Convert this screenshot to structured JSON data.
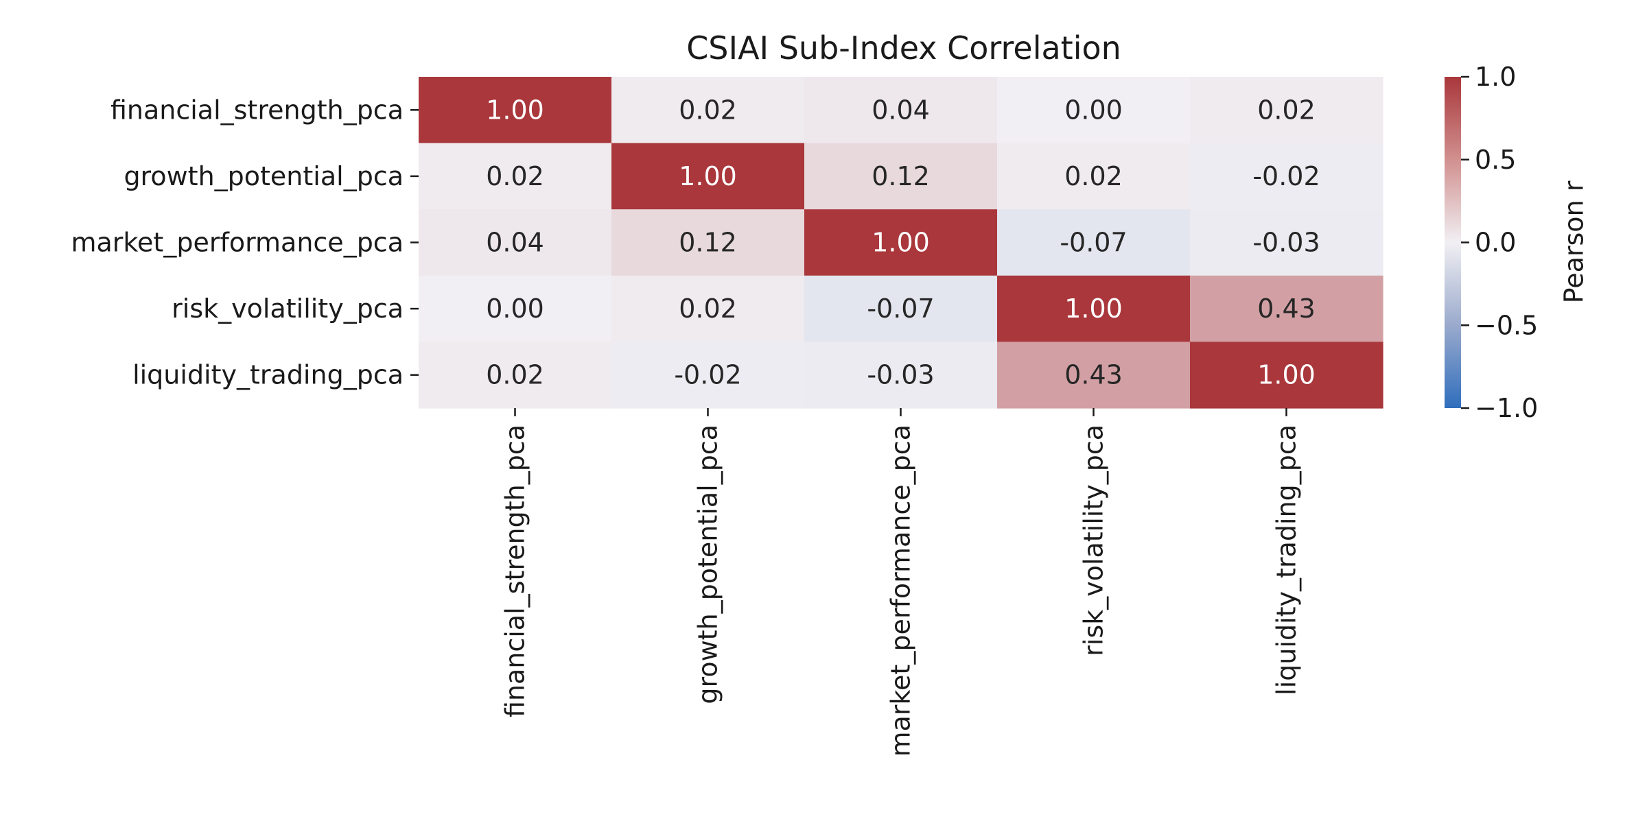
{
  "chart_data": {
    "type": "heatmap",
    "title": "CSIAI Sub-Index Correlation",
    "rows": [
      "financial_strength_pca",
      "growth_potential_pca",
      "market_performance_pca",
      "risk_volatility_pca",
      "liquidity_trading_pca"
    ],
    "cols": [
      "financial_strength_pca",
      "growth_potential_pca",
      "market_performance_pca",
      "risk_volatility_pca",
      "liquidity_trading_pca"
    ],
    "values": [
      [
        1.0,
        0.02,
        0.04,
        0.0,
        0.02
      ],
      [
        0.02,
        1.0,
        0.12,
        0.02,
        -0.02
      ],
      [
        0.04,
        0.12,
        1.0,
        -0.07,
        -0.03
      ],
      [
        0.0,
        0.02,
        -0.07,
        1.0,
        0.43
      ],
      [
        0.02,
        -0.02,
        -0.03,
        0.43,
        1.0
      ]
    ],
    "value_format": "0.00",
    "colorbar": {
      "label": "Pearson r",
      "vmin": -1.0,
      "vmax": 1.0,
      "ticks": [
        1.0,
        0.5,
        0.0,
        -0.5,
        -1.0
      ],
      "tick_labels": [
        "1.0",
        "0.5",
        "0.0",
        "−0.5",
        "−1.0"
      ],
      "colormap": "vlag",
      "colors": {
        "negative": "#2f6ebc",
        "neutral": "#f1eff3",
        "positive": "#a9373b"
      }
    }
  }
}
